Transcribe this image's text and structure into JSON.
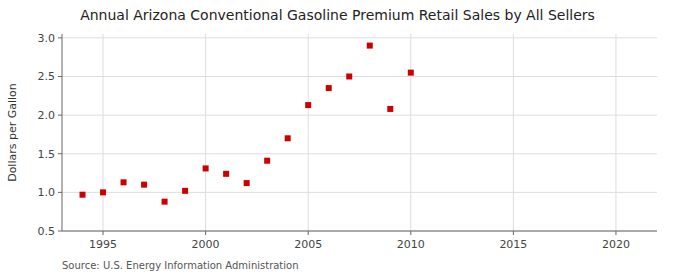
{
  "chart_data": {
    "type": "scatter",
    "title": "Annual Arizona Conventional Gasoline Premium Retail Sales by All Sellers",
    "y_label": "Dollars per Gallon",
    "source": "Source: U.S. Energy Information Administration",
    "x": [
      1994,
      1995,
      1996,
      1997,
      1998,
      1999,
      2000,
      2001,
      2002,
      2003,
      2004,
      2005,
      2006,
      2007,
      2008,
      2009,
      2010
    ],
    "values": [
      0.97,
      1.0,
      1.13,
      1.1,
      0.88,
      1.02,
      1.31,
      1.24,
      1.12,
      1.41,
      1.7,
      2.13,
      2.35,
      2.5,
      2.9,
      2.08,
      2.55
    ],
    "color": "#cc0000",
    "marker": "square",
    "xlim": [
      1993,
      2022
    ],
    "ylim": [
      0.5,
      3.05
    ],
    "xticks": [
      1995,
      2000,
      2005,
      2010,
      2015,
      2020
    ],
    "yticks": [
      0.5,
      {
        "value": 1.0,
        "label": "1.0"
      },
      1.5,
      {
        "value": 2.0,
        "label": "2.0"
      },
      2.5,
      {
        "value": 3.0,
        "label": "3.0"
      }
    ],
    "grid": true
  }
}
